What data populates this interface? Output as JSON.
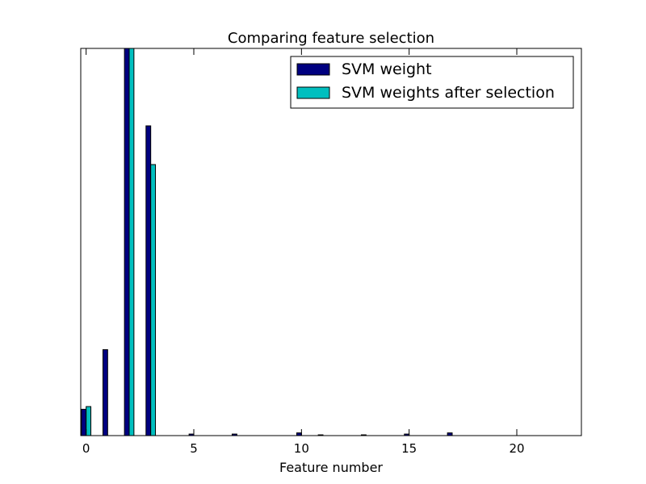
{
  "chart_data": {
    "type": "bar",
    "title": "Comparing feature selection",
    "xlabel": "Feature number",
    "ylabel": "",
    "xlim": [
      -0.25,
      23
    ],
    "ylim": [
      0,
      1.0
    ],
    "xticks": [
      0,
      5,
      10,
      15,
      20
    ],
    "show_yticks": false,
    "grid": false,
    "legend_position": "top-right",
    "series": [
      {
        "name": "SVM weight",
        "color": "#000080",
        "x": [
          0,
          1,
          2,
          3,
          4,
          5,
          6,
          7,
          8,
          9,
          10,
          11,
          12,
          13,
          14,
          15,
          16,
          17,
          18,
          19,
          20,
          21,
          22
        ],
        "values": [
          0.068,
          0.222,
          1.0,
          0.8,
          0.0,
          0.004,
          0.0,
          0.004,
          0.0,
          0.0,
          0.007,
          0.002,
          0.0,
          0.002,
          0.0,
          0.004,
          0.0,
          0.007,
          0.0,
          0.0,
          0.0,
          0.0,
          0.0
        ]
      },
      {
        "name": "SVM weights after selection",
        "color": "#00bfbf",
        "x": [
          0,
          1,
          2,
          3,
          4,
          5,
          6,
          7,
          8,
          9,
          10,
          11,
          12,
          13,
          14,
          15,
          16,
          17,
          18,
          19,
          20,
          21,
          22
        ],
        "values": [
          0.075,
          0.0,
          1.0,
          0.7,
          0.0,
          0.0,
          0.0,
          0.0,
          0.0,
          0.0,
          0.0,
          0.0,
          0.0,
          0.0,
          0.0,
          0.0,
          0.0,
          0.0,
          0.0,
          0.0,
          0.0,
          0.0,
          0.0
        ]
      }
    ]
  }
}
